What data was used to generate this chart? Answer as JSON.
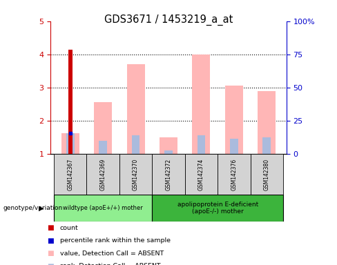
{
  "title": "GDS3671 / 1453219_a_at",
  "samples": [
    "GSM142367",
    "GSM142369",
    "GSM142370",
    "GSM142372",
    "GSM142374",
    "GSM142376",
    "GSM142380"
  ],
  "group1_indices": [
    0,
    1,
    2
  ],
  "group2_indices": [
    3,
    4,
    5,
    6
  ],
  "red_bar_top": [
    4.15,
    0,
    0,
    0,
    0,
    0,
    0
  ],
  "blue_val": 1.62,
  "pink_bar_top": [
    1.62,
    2.55,
    3.7,
    1.5,
    4.0,
    3.05,
    2.9
  ],
  "light_blue_bar_top": [
    1.62,
    1.38,
    1.55,
    1.1,
    1.55,
    1.45,
    1.5
  ],
  "ylim_left": [
    1,
    5
  ],
  "ylim_right": [
    0,
    100
  ],
  "yticks_left": [
    1,
    2,
    3,
    4,
    5
  ],
  "yticks_right": [
    0,
    25,
    50,
    75,
    100
  ],
  "ytick_right_labels": [
    "0",
    "25",
    "50",
    "75",
    "100%"
  ],
  "colors": {
    "red": "#CC0000",
    "blue": "#0000CC",
    "pink": "#FFB6B6",
    "light_blue": "#AABBDD",
    "left_axis": "#CC0000",
    "right_axis": "#0000CC",
    "sample_bg": "#D3D3D3",
    "group1_bg": "#90EE90",
    "group2_bg": "#3CB43C"
  },
  "legend_items": [
    {
      "label": "count",
      "color": "#CC0000"
    },
    {
      "label": "percentile rank within the sample",
      "color": "#0000CC"
    },
    {
      "label": "value, Detection Call = ABSENT",
      "color": "#FFB6B6"
    },
    {
      "label": "rank, Detection Call = ABSENT",
      "color": "#AABBDD"
    }
  ],
  "group1_label": "wildtype (apoE+/+) mother",
  "group2_label": "apolipoprotein E-deficient\n(apoE-/-) mother",
  "genotype_label": "genotype/variation"
}
